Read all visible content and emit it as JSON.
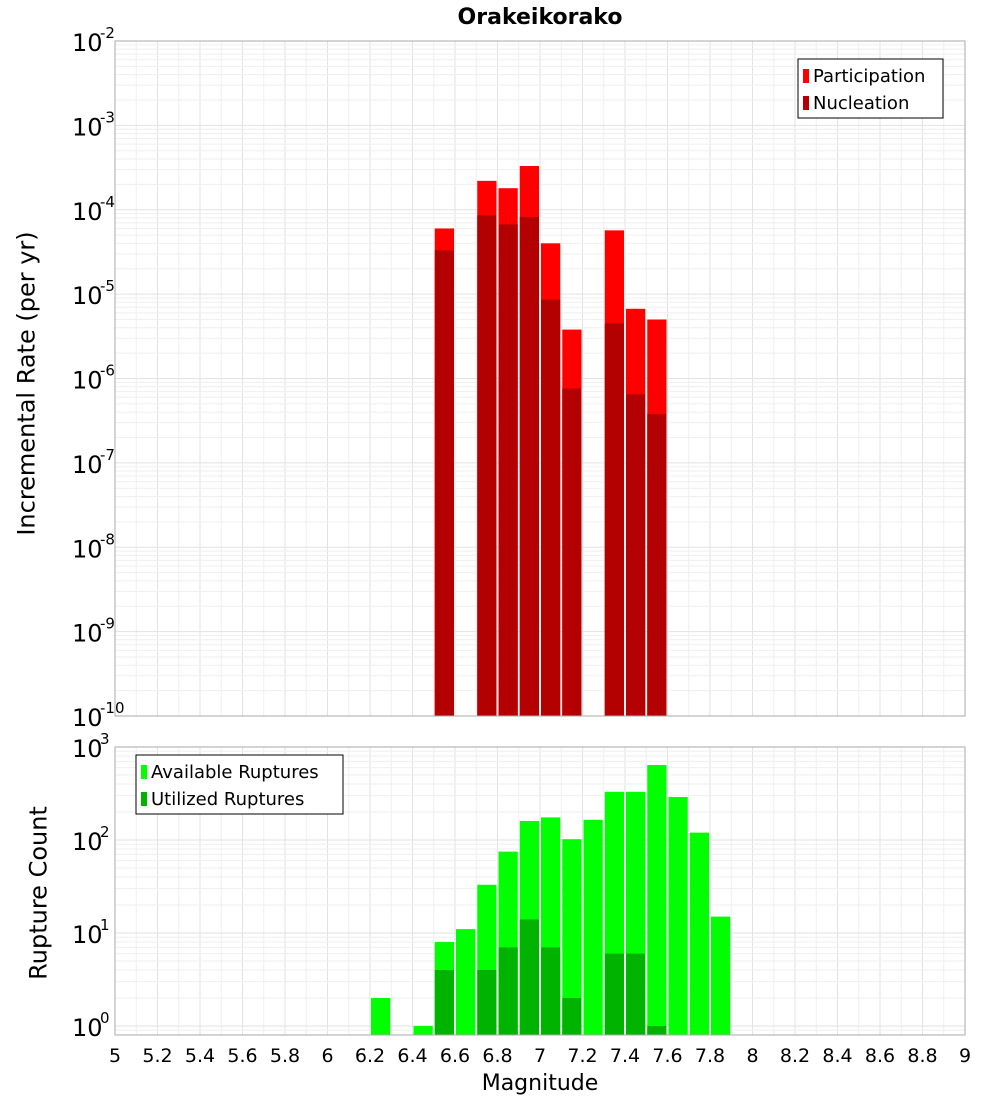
{
  "chart_data": [
    {
      "type": "bar",
      "title": "Orakeikorako",
      "xlabel": "",
      "ylabel": "Incremental Rate (per yr)",
      "yscale": "log",
      "xlim": [
        5,
        9
      ],
      "ylim": [
        1e-10,
        0.01
      ],
      "ytick_exponents": [
        "-2",
        "-3",
        "-4",
        "-5",
        "-6",
        "-7",
        "-8",
        "-9",
        "-10"
      ],
      "bin_width": 0.1,
      "legend_position": "top-right",
      "series": [
        {
          "name": "Participation",
          "color": "#ff0000",
          "x": [
            6.55,
            6.75,
            6.85,
            6.95,
            7.05,
            7.15,
            7.35,
            7.45,
            7.55
          ],
          "values": [
            6e-05,
            0.00022,
            0.00018,
            0.00033,
            4e-05,
            3.8e-06,
            5.7e-05,
            6.7e-06,
            5e-06
          ]
        },
        {
          "name": "Nucleation",
          "color": "#b30000",
          "x": [
            6.55,
            6.75,
            6.85,
            6.95,
            7.05,
            7.15,
            7.35,
            7.45,
            7.55
          ],
          "values": [
            3.3e-05,
            8.6e-05,
            6.7e-05,
            8.2e-05,
            8.6e-06,
            7.6e-07,
            4.5e-06,
            6.5e-07,
            3.8e-07
          ]
        }
      ]
    },
    {
      "type": "bar",
      "title": "",
      "xlabel": "Magnitude",
      "ylabel": "Rupture Count",
      "yscale": "log",
      "xlim": [
        5,
        9
      ],
      "ylim": [
        0.8,
        1000
      ],
      "ytick_exponents": [
        "3",
        "2",
        "1",
        "0"
      ],
      "bin_width": 0.1,
      "legend_position": "top-left",
      "xticks": [
        "5",
        "5.2",
        "5.4",
        "5.6",
        "5.8",
        "6",
        "6.2",
        "6.4",
        "6.6",
        "6.8",
        "7",
        "7.2",
        "7.4",
        "7.6",
        "7.8",
        "8",
        "8.2",
        "8.4",
        "8.6",
        "8.8",
        "9"
      ],
      "series": [
        {
          "name": "Available Ruptures",
          "color": "#00ff00",
          "x": [
            6.25,
            6.45,
            6.55,
            6.65,
            6.75,
            6.85,
            6.95,
            7.05,
            7.15,
            7.25,
            7.35,
            7.45,
            7.55,
            7.65,
            7.75,
            7.85
          ],
          "values": [
            2,
            1,
            8,
            11,
            33,
            75,
            160,
            175,
            102,
            165,
            330,
            330,
            640,
            290,
            120,
            15
          ]
        },
        {
          "name": "Utilized Ruptures",
          "color": "#00b300",
          "x": [
            6.55,
            6.75,
            6.85,
            6.95,
            7.05,
            7.15,
            7.35,
            7.45,
            7.55
          ],
          "values": [
            4,
            4,
            7,
            14,
            7,
            2,
            6,
            6,
            1
          ]
        }
      ]
    }
  ]
}
